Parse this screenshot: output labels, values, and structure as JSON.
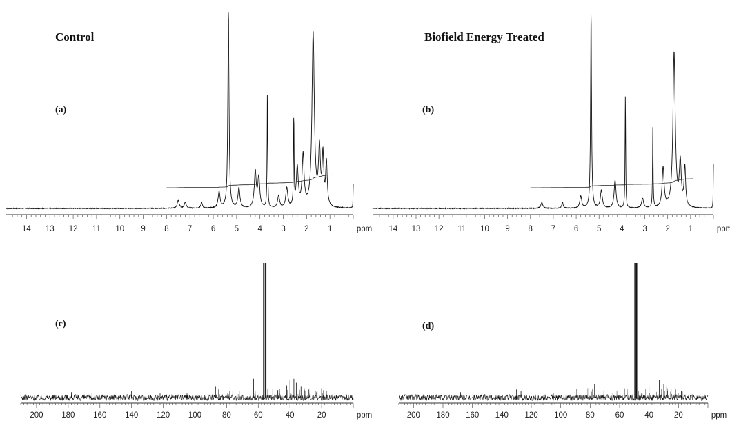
{
  "headers": {
    "control": "Control",
    "treated": "Biofield Energy Treated"
  },
  "chart_data": [
    {
      "id": "a",
      "panel_label": "(a)",
      "type": "line",
      "xlabel": "ppm",
      "x_reversed": true,
      "xlim": [
        14.9,
        0
      ],
      "x_ticks": [
        14,
        13,
        12,
        11,
        10,
        9,
        8,
        7,
        6,
        5,
        4,
        3,
        2,
        1
      ],
      "peaks": [
        {
          "ppm": 5.35,
          "height": 1.0,
          "width": 0.03
        },
        {
          "ppm": 3.68,
          "height": 0.58,
          "width": 0.015
        },
        {
          "ppm": 2.55,
          "height": 0.46,
          "width": 0.015
        },
        {
          "ppm": 1.72,
          "height": 0.88,
          "width": 0.06
        },
        {
          "ppm": 1.45,
          "height": 0.28,
          "width": 0.05
        },
        {
          "ppm": 1.3,
          "height": 0.25,
          "width": 0.04
        },
        {
          "ppm": 1.15,
          "height": 0.22,
          "width": 0.04
        },
        {
          "ppm": 2.15,
          "height": 0.26,
          "width": 0.05
        },
        {
          "ppm": 2.4,
          "height": 0.2,
          "width": 0.05
        },
        {
          "ppm": 4.2,
          "height": 0.18,
          "width": 0.05
        },
        {
          "ppm": 4.05,
          "height": 0.15,
          "width": 0.05
        },
        {
          "ppm": 4.9,
          "height": 0.1,
          "width": 0.05
        },
        {
          "ppm": 5.75,
          "height": 0.08,
          "width": 0.05
        },
        {
          "ppm": 7.5,
          "height": 0.04,
          "width": 0.05
        },
        {
          "ppm": 7.2,
          "height": 0.03,
          "width": 0.05
        },
        {
          "ppm": 6.5,
          "height": 0.03,
          "width": 0.04
        },
        {
          "ppm": 3.2,
          "height": 0.06,
          "width": 0.05
        },
        {
          "ppm": 2.85,
          "height": 0.1,
          "width": 0.05
        },
        {
          "ppm": 0.0,
          "height": 0.12,
          "width": 0.01
        }
      ]
    },
    {
      "id": "b",
      "panel_label": "(b)",
      "type": "line",
      "xlabel": "ppm",
      "x_reversed": true,
      "xlim": [
        14.9,
        0
      ],
      "x_ticks": [
        14,
        13,
        12,
        11,
        10,
        9,
        8,
        7,
        6,
        5,
        4,
        3,
        2,
        1
      ],
      "peaks": [
        {
          "ppm": 5.35,
          "height": 1.0,
          "width": 0.025
        },
        {
          "ppm": 3.85,
          "height": 0.58,
          "width": 0.015
        },
        {
          "ppm": 2.65,
          "height": 0.4,
          "width": 0.015
        },
        {
          "ppm": 1.72,
          "height": 0.78,
          "width": 0.06
        },
        {
          "ppm": 1.45,
          "height": 0.22,
          "width": 0.05
        },
        {
          "ppm": 1.25,
          "height": 0.2,
          "width": 0.04
        },
        {
          "ppm": 2.2,
          "height": 0.2,
          "width": 0.05
        },
        {
          "ppm": 4.3,
          "height": 0.14,
          "width": 0.05
        },
        {
          "ppm": 4.9,
          "height": 0.09,
          "width": 0.05
        },
        {
          "ppm": 5.8,
          "height": 0.06,
          "width": 0.05
        },
        {
          "ppm": 7.5,
          "height": 0.03,
          "width": 0.05
        },
        {
          "ppm": 6.6,
          "height": 0.03,
          "width": 0.04
        },
        {
          "ppm": 3.1,
          "height": 0.05,
          "width": 0.05
        },
        {
          "ppm": 0.0,
          "height": 0.22,
          "width": 0.01
        }
      ]
    },
    {
      "id": "c",
      "panel_label": "(c)",
      "type": "line",
      "xlabel": "ppm",
      "x_reversed": true,
      "xlim": [
        210,
        0
      ],
      "x_ticks": [
        200,
        180,
        160,
        140,
        120,
        100,
        80,
        60,
        40,
        20
      ],
      "peaks": [
        {
          "ppm": 56.5,
          "height": 1.0
        },
        {
          "ppm": 55.3,
          "height": 1.0
        },
        {
          "ppm": 63.0,
          "height": 0.14
        },
        {
          "ppm": 40.0,
          "height": 0.13
        },
        {
          "ppm": 37.5,
          "height": 0.14
        },
        {
          "ppm": 36.0,
          "height": 0.11
        },
        {
          "ppm": 42.0,
          "height": 0.09
        },
        {
          "ppm": 33.0,
          "height": 0.08
        },
        {
          "ppm": 31.0,
          "height": 0.07
        },
        {
          "ppm": 28.0,
          "height": 0.06
        },
        {
          "ppm": 24.0,
          "height": 0.05
        },
        {
          "ppm": 20.0,
          "height": 0.07
        },
        {
          "ppm": 87.0,
          "height": 0.08
        },
        {
          "ppm": 85.0,
          "height": 0.06
        },
        {
          "ppm": 78.0,
          "height": 0.05
        },
        {
          "ppm": 72.0,
          "height": 0.05
        },
        {
          "ppm": 134.0,
          "height": 0.06
        },
        {
          "ppm": 140.0,
          "height": 0.05
        },
        {
          "ppm": 178.0,
          "height": 0.04
        },
        {
          "ppm": 165.0,
          "height": 0.03
        },
        {
          "ppm": 122.0,
          "height": 0.03
        },
        {
          "ppm": 105.0,
          "height": 0.03
        }
      ]
    },
    {
      "id": "d",
      "panel_label": "(d)",
      "type": "line",
      "xlabel": "ppm",
      "x_reversed": true,
      "xlim": [
        210,
        0
      ],
      "x_ticks": [
        200,
        180,
        160,
        140,
        120,
        100,
        80,
        60,
        40,
        20
      ],
      "peaks": [
        {
          "ppm": 49.5,
          "height": 1.0
        },
        {
          "ppm": 48.5,
          "height": 1.0
        },
        {
          "ppm": 57.0,
          "height": 0.12
        },
        {
          "ppm": 33.0,
          "height": 0.13
        },
        {
          "ppm": 30.0,
          "height": 0.1
        },
        {
          "ppm": 28.0,
          "height": 0.08
        },
        {
          "ppm": 25.0,
          "height": 0.07
        },
        {
          "ppm": 22.0,
          "height": 0.06
        },
        {
          "ppm": 18.0,
          "height": 0.05
        },
        {
          "ppm": 40.0,
          "height": 0.08
        },
        {
          "ppm": 77.0,
          "height": 0.1
        },
        {
          "ppm": 72.0,
          "height": 0.06
        },
        {
          "ppm": 130.0,
          "height": 0.06
        },
        {
          "ppm": 127.0,
          "height": 0.05
        },
        {
          "ppm": 168.0,
          "height": 0.04
        },
        {
          "ppm": 105.0,
          "height": 0.03
        },
        {
          "ppm": 63.0,
          "height": 0.04
        }
      ]
    }
  ]
}
